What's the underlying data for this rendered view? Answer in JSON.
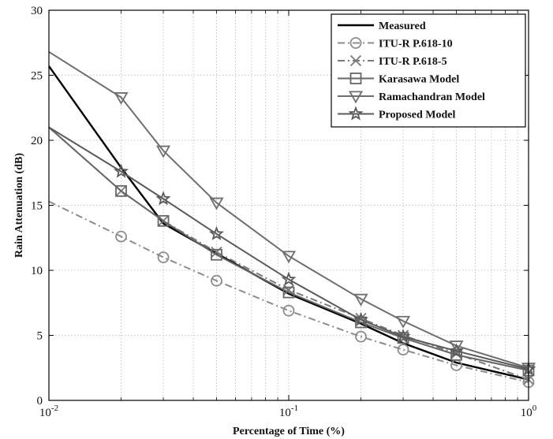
{
  "chart_data": {
    "type": "line",
    "xlabel": "Percentage of Time (%)",
    "ylabel": "Rain Attenuation (dB)",
    "xscale": "log",
    "xlim": [
      0.01,
      1
    ],
    "ylim": [
      0,
      30
    ],
    "yticks": [
      0,
      5,
      10,
      15,
      20,
      25,
      30
    ],
    "xticks": [
      {
        "value": 0.01,
        "base": "10",
        "exp": "-2"
      },
      {
        "value": 0.1,
        "base": "10",
        "exp": "-1"
      },
      {
        "value": 1,
        "base": "10",
        "exp": "0"
      }
    ],
    "grid": true,
    "legend_position": "top-right",
    "series": [
      {
        "name": "Measured",
        "marker": "none",
        "dash": "solid",
        "color": "#000000",
        "x": [
          0.01,
          0.02,
          0.03,
          0.05,
          0.1,
          0.2,
          0.3,
          0.5,
          1
        ],
        "y": [
          25.7,
          17.9,
          13.6,
          11.3,
          8.2,
          5.9,
          4.4,
          2.9,
          1.6
        ]
      },
      {
        "name": "ITU-R P.618-10",
        "marker": "circle",
        "dash": "dashdot",
        "color": "#8c8c8c",
        "x": [
          0.01,
          0.02,
          0.03,
          0.05,
          0.1,
          0.2,
          0.3,
          0.5,
          1
        ],
        "y": [
          15.3,
          12.6,
          11.0,
          9.2,
          6.9,
          4.9,
          3.9,
          2.7,
          1.4
        ]
      },
      {
        "name": "ITU-R P.618-5",
        "marker": "x",
        "dash": "dashdot",
        "color": "#7a7a7a",
        "x": [
          0.01,
          0.02,
          0.03,
          0.05,
          0.1,
          0.2,
          0.3,
          0.5,
          1
        ],
        "y": [
          21.0,
          16.1,
          13.8,
          11.4,
          8.5,
          6.3,
          5.0,
          3.6,
          1.6
        ]
      },
      {
        "name": "Karasawa Model",
        "marker": "square",
        "dash": "solid",
        "color": "#666666",
        "x": [
          0.01,
          0.02,
          0.03,
          0.05,
          0.1,
          0.2,
          0.3,
          0.5,
          1
        ],
        "y": [
          21.0,
          16.1,
          13.8,
          11.2,
          8.3,
          6.0,
          4.8,
          3.5,
          2.3
        ]
      },
      {
        "name": "Ramachandran Model",
        "marker": "triangle-down",
        "dash": "solid",
        "color": "#6e6e6e",
        "x": [
          0.01,
          0.02,
          0.03,
          0.05,
          0.1,
          0.2,
          0.3,
          0.5,
          1
        ],
        "y": [
          26.8,
          23.3,
          19.2,
          15.2,
          11.1,
          7.8,
          6.1,
          4.2,
          2.5
        ]
      },
      {
        "name": "Proposed Model",
        "marker": "star",
        "dash": "solid",
        "color": "#5a5a5a",
        "x": [
          0.01,
          0.02,
          0.03,
          0.05,
          0.1,
          0.2,
          0.3,
          0.5,
          1
        ],
        "y": [
          21.0,
          17.6,
          15.5,
          12.8,
          9.3,
          6.2,
          4.9,
          3.8,
          2.4
        ]
      }
    ]
  }
}
